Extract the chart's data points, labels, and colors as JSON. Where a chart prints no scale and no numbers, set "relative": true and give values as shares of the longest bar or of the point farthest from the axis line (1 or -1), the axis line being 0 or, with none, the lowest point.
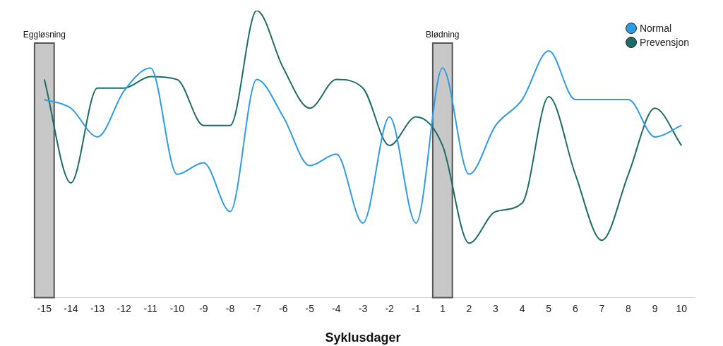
{
  "chart_data": {
    "type": "line",
    "relative": true,
    "xlabel": "Syklusdager",
    "legend": "top right",
    "grid": false,
    "categories": [
      "-15",
      "-14",
      "-13",
      "-12",
      "-11",
      "-10",
      "-9",
      "-8",
      "-7",
      "-6",
      "-5",
      "-4",
      "-3",
      "-2",
      "-1",
      "1",
      "2",
      "3",
      "4",
      "5",
      "6",
      "7",
      "8",
      "9",
      "10"
    ],
    "series": [
      {
        "name": "Normal",
        "color": "#2e9be6",
        "values": [
          0.69,
          0.66,
          0.56,
          0.72,
          0.8,
          0.43,
          0.47,
          0.3,
          0.76,
          0.63,
          0.46,
          0.5,
          0.26,
          0.63,
          0.26,
          0.8,
          0.43,
          0.6,
          0.69,
          0.86,
          0.69,
          0.69,
          0.69,
          0.56,
          0.6
        ]
      },
      {
        "name": "Prevensjon",
        "color": "#1d6b66",
        "values": [
          0.76,
          0.4,
          0.73,
          0.73,
          0.77,
          0.76,
          0.6,
          0.6,
          1,
          0.8,
          0.66,
          0.76,
          0.73,
          0.53,
          0.63,
          0.53,
          0.19,
          0.3,
          0.33,
          0.7,
          0.43,
          0.2,
          0.43,
          0.66,
          0.53
        ]
      }
    ],
    "bands": [
      {
        "axis": "x",
        "from": "-15",
        "to": "-15",
        "label": "Eggløsning",
        "color": "#c8c8c8"
      },
      {
        "axis": "x",
        "from": "1",
        "to": "1",
        "label": "Blødning",
        "color": "#c8c8c8"
      }
    ]
  }
}
